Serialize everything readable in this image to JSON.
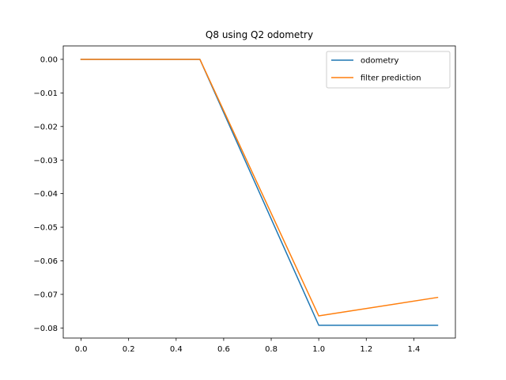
{
  "chart_data": {
    "type": "line",
    "title": "Q8 using Q2 odometry",
    "xlabel": "",
    "ylabel": "",
    "xlim": [
      -0.075,
      1.575
    ],
    "ylim": [
      -0.083,
      0.004
    ],
    "xticks": [
      0.0,
      0.2,
      0.4,
      0.6,
      0.8,
      1.0,
      1.2,
      1.4
    ],
    "xtick_labels": [
      "0.0",
      "0.2",
      "0.4",
      "0.6",
      "0.8",
      "1.0",
      "1.2",
      "1.4"
    ],
    "yticks": [
      0.0,
      -0.01,
      -0.02,
      -0.03,
      -0.04,
      -0.05,
      -0.06,
      -0.07,
      -0.08
    ],
    "ytick_labels": [
      "0.00",
      "−0.01",
      "−0.02",
      "−0.03",
      "−0.04",
      "−0.05",
      "−0.06",
      "−0.07",
      "−0.08"
    ],
    "grid": false,
    "legend": "top-right",
    "series": [
      {
        "name": "odometry",
        "color": "#1f77b4",
        "x": [
          0.0,
          0.5,
          1.0,
          1.5
        ],
        "y": [
          0.0,
          0.0,
          -0.0792,
          -0.0792
        ]
      },
      {
        "name": "filter prediction",
        "color": "#ff7f0e",
        "x": [
          0.0,
          0.5,
          1.0,
          1.5
        ],
        "y": [
          0.0,
          0.0,
          -0.0764,
          -0.0709
        ]
      }
    ]
  }
}
